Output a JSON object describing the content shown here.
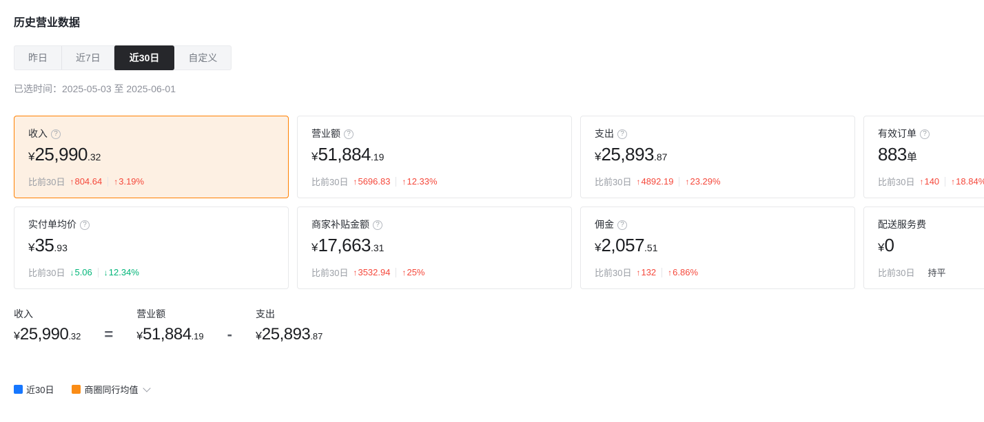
{
  "page": {
    "title": "历史营业数据"
  },
  "icons": {
    "help_glyph": "?"
  },
  "tabs": [
    {
      "label": "昨日",
      "active": false
    },
    {
      "label": "近7日",
      "active": false
    },
    {
      "label": "近30日",
      "active": true
    },
    {
      "label": "自定义",
      "active": false
    }
  ],
  "selected_time": {
    "label": "已选时间：",
    "value": "2025-05-03 至 2025-06-01"
  },
  "cards": [
    {
      "label": "收入",
      "highlighted": true,
      "value": {
        "currency": "¥",
        "int": "25,990",
        "dec": ".32",
        "unit": ""
      },
      "compare": {
        "label": "比前30日",
        "trend": "up",
        "arrow": "↑",
        "delta": "804.64",
        "pct": "3.19%"
      }
    },
    {
      "label": "营业额",
      "value": {
        "currency": "¥",
        "int": "51,884",
        "dec": ".19",
        "unit": ""
      },
      "compare": {
        "label": "比前30日",
        "trend": "up",
        "arrow": "↑",
        "delta": "5696.83",
        "pct": "12.33%"
      }
    },
    {
      "label": "支出",
      "value": {
        "currency": "¥",
        "int": "25,893",
        "dec": ".87",
        "unit": ""
      },
      "compare": {
        "label": "比前30日",
        "trend": "up",
        "arrow": "↑",
        "delta": "4892.19",
        "pct": "23.29%"
      }
    },
    {
      "label": "有效订单",
      "value": {
        "currency": "",
        "int": "883",
        "dec": "",
        "unit": "单"
      },
      "compare": {
        "label": "比前30日",
        "trend": "up",
        "arrow": "↑",
        "delta": "140",
        "pct": "18.84%"
      }
    },
    {
      "label": "实付单均价",
      "value": {
        "currency": "¥",
        "int": "35",
        "dec": ".93",
        "unit": ""
      },
      "compare": {
        "label": "比前30日",
        "trend": "down",
        "arrow": "↓",
        "delta": "5.06",
        "pct": "12.34%"
      }
    },
    {
      "label": "商家补贴金额",
      "value": {
        "currency": "¥",
        "int": "17,663",
        "dec": ".31",
        "unit": ""
      },
      "compare": {
        "label": "比前30日",
        "trend": "up",
        "arrow": "↑",
        "delta": "3532.94",
        "pct": "25%"
      }
    },
    {
      "label": "佣金",
      "value": {
        "currency": "¥",
        "int": "2,057",
        "dec": ".51",
        "unit": ""
      },
      "compare": {
        "label": "比前30日",
        "trend": "up",
        "arrow": "↑",
        "delta": "132",
        "pct": "6.86%"
      }
    },
    {
      "label": "配送服务费",
      "value": {
        "currency": "¥",
        "int": "0",
        "dec": "",
        "unit": ""
      },
      "compare": {
        "label": "比前30日",
        "trend": "flat",
        "flat_text": "持平"
      }
    }
  ],
  "formula": {
    "items": [
      {
        "label": "收入",
        "currency": "¥",
        "int": "25,990",
        "dec": ".32"
      },
      {
        "label": "营业额",
        "currency": "¥",
        "int": "51,884",
        "dec": ".19"
      },
      {
        "label": "支出",
        "currency": "¥",
        "int": "25,893",
        "dec": ".87"
      }
    ],
    "operators": [
      "=",
      "-"
    ]
  },
  "legend": {
    "items": [
      {
        "label": "近30日",
        "color": "#1677ff"
      },
      {
        "label": "商圈同行均值",
        "color": "#fa8c16",
        "has_dropdown": true
      }
    ]
  },
  "colors": {
    "accent_orange": "#ff8000",
    "highlight_card_bg": "#fdf0e3",
    "increase_red": "#f5483b",
    "decrease_green": "#00b578",
    "legend_blue": "#1677ff",
    "legend_orange": "#fa8c16",
    "active_tab_bg": "#26272b"
  }
}
